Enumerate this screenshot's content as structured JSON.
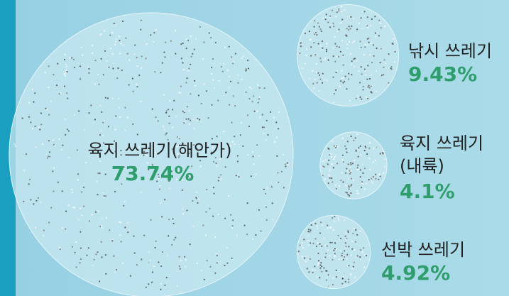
{
  "chart_data": {
    "type": "bubble",
    "categories": [
      "육지 쓰레기(해안가)",
      "낚시 쓰레기",
      "육지 쓰레기 (내륙)",
      "선박 쓰레기"
    ],
    "values": [
      73.74,
      9.43,
      4.1,
      4.92
    ],
    "value_labels": [
      "73.74%",
      "9.43%",
      "4.1%",
      "4.92%"
    ],
    "color": "#c8e8f0",
    "label_color": "#2f9e6c"
  }
}
